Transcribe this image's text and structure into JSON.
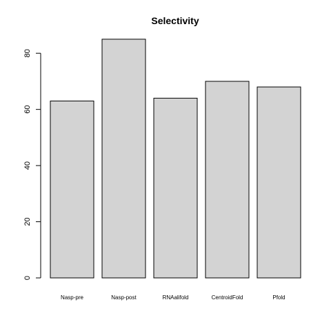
{
  "chart_data": {
    "type": "bar",
    "title": "Selectivity",
    "xlabel": "",
    "ylabel": "",
    "categories": [
      "Nasp-pre",
      "Nasp-post",
      "RNAalifold",
      "CentroidFold",
      "Pfold"
    ],
    "values": [
      63,
      85,
      64,
      70,
      68
    ],
    "ylim": [
      0,
      88.4
    ],
    "yticks": [
      0,
      20,
      40,
      60,
      80
    ],
    "grid": false,
    "legend": "none",
    "bar_color": "#d3d3d3",
    "bar_border_color": "#000000"
  }
}
